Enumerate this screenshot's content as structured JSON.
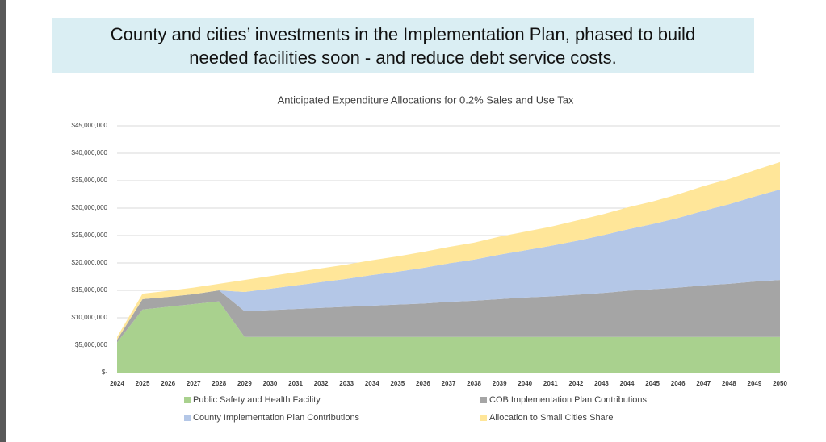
{
  "header": {
    "title": "County and cities’ investments in the Implementation Plan, phased to build needed facilities soon - and reduce debt service costs."
  },
  "chart_data": {
    "type": "stacked-area",
    "title": "Anticipated Expenditure Allocations for 0.2% Sales and Use Tax",
    "x": [
      2024,
      2025,
      2026,
      2027,
      2028,
      2029,
      2030,
      2031,
      2032,
      2033,
      2034,
      2035,
      2036,
      2037,
      2038,
      2039,
      2040,
      2041,
      2042,
      2043,
      2044,
      2045,
      2046,
      2047,
      2048,
      2049,
      2050
    ],
    "xlim": [
      2024,
      2050
    ],
    "ylim": [
      0,
      45000000
    ],
    "yticks": [
      {
        "value": 0,
        "label": "$-"
      },
      {
        "value": 5000000,
        "label": "$5,000,000"
      },
      {
        "value": 10000000,
        "label": "$10,000,000"
      },
      {
        "value": 15000000,
        "label": "$15,000,000"
      },
      {
        "value": 20000000,
        "label": "$20,000,000"
      },
      {
        "value": 25000000,
        "label": "$25,000,000"
      },
      {
        "value": 30000000,
        "label": "$30,000,000"
      },
      {
        "value": 35000000,
        "label": "$35,000,000"
      },
      {
        "value": 40000000,
        "label": "$40,000,000"
      },
      {
        "value": 45000000,
        "label": "$45,000,000"
      }
    ],
    "grid": true,
    "legend": "bottom",
    "series": [
      {
        "name": "Public Safety and Health Facility",
        "color": "#a9d18e",
        "values": [
          5500000,
          11500000,
          12000000,
          12500000,
          13000000,
          6500000,
          6500000,
          6500000,
          6500000,
          6500000,
          6500000,
          6500000,
          6500000,
          6500000,
          6500000,
          6500000,
          6500000,
          6500000,
          6500000,
          6500000,
          6500000,
          6500000,
          6500000,
          6500000,
          6500000,
          6500000,
          6500000
        ]
      },
      {
        "name": "COB Implementation Plan Contributions",
        "color": "#a5a5a5",
        "values": [
          500000,
          1900000,
          1800000,
          1800000,
          2000000,
          4700000,
          4900000,
          5100000,
          5300000,
          5500000,
          5700000,
          5900000,
          6100000,
          6400000,
          6600000,
          6900000,
          7200000,
          7400000,
          7700000,
          8000000,
          8400000,
          8700000,
          9000000,
          9400000,
          9700000,
          10100000,
          10400000
        ]
      },
      {
        "name": "County Implementation Plan Contributions",
        "color": "#b4c7e7",
        "values": [
          0,
          0,
          0,
          0,
          0,
          3500000,
          3900000,
          4300000,
          4700000,
          5100000,
          5600000,
          6000000,
          6500000,
          7000000,
          7500000,
          8100000,
          8600000,
          9200000,
          9800000,
          10500000,
          11200000,
          11900000,
          12700000,
          13600000,
          14500000,
          15500000,
          16500000
        ]
      },
      {
        "name": "Allocation to Small Cities Share",
        "color": "#ffe699",
        "values": [
          500000,
          1000000,
          1100000,
          1200000,
          1200000,
          2200000,
          2300000,
          2400000,
          2500000,
          2600000,
          2700000,
          2800000,
          2900000,
          3000000,
          3100000,
          3300000,
          3400000,
          3500000,
          3700000,
          3800000,
          4000000,
          4100000,
          4300000,
          4500000,
          4600000,
          4800000,
          5000000
        ]
      }
    ]
  }
}
